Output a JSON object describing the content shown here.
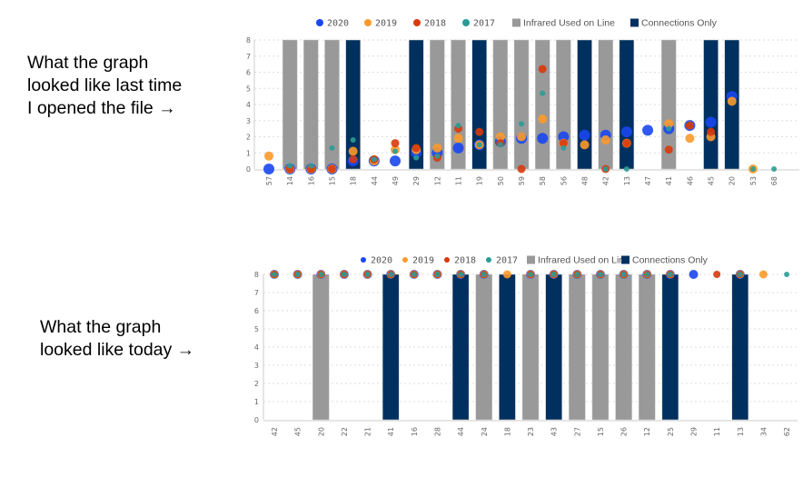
{
  "captions": {
    "before": "What the graph\nlooked like last time\nI opened the file →",
    "after": "What the graph\nlooked like today →"
  },
  "colors": {
    "2020": "#1a47f0",
    "2019": "#fb9a2b",
    "2018": "#d83a0c",
    "2017": "#2a9c96",
    "Infrared Used on Line": "#999999",
    "Connections Only": "#00305f"
  },
  "chart_data": [
    {
      "type": "bar+scatter",
      "legend": [
        "2020",
        "2019",
        "2018",
        "2017",
        "Infrared Used on Line",
        "Connections Only"
      ],
      "legend_position": "top",
      "ylim": [
        0,
        8
      ],
      "yticks": [
        0,
        1,
        2,
        3,
        4,
        5,
        6,
        7,
        8
      ],
      "grid": true,
      "categories": [
        "57",
        "14",
        "16",
        "15",
        "18",
        "44",
        "49",
        "29",
        "12",
        "11",
        "19",
        "50",
        "59",
        "58",
        "56",
        "48",
        "42",
        "13",
        "47",
        "41",
        "46",
        "45",
        "20",
        "53",
        "68"
      ],
      "bars": [
        "",
        "Infrared Used on Line",
        "Infrared Used on Line",
        "Infrared Used on Line",
        "Connections Only",
        "",
        "",
        "Connections Only",
        "Infrared Used on Line",
        "Infrared Used on Line",
        "Connections Only",
        "Infrared Used on Line",
        "Infrared Used on Line",
        "Infrared Used on Line",
        "Infrared Used on Line",
        "Connections Only",
        "Infrared Used on Line",
        "Connections Only",
        "",
        "Infrared Used on Line",
        "",
        "Connections Only",
        "Connections Only",
        "",
        ""
      ],
      "series": [
        {
          "name": "2020",
          "values": [
            0,
            0,
            0,
            0,
            0.5,
            0.5,
            0.5,
            1.0,
            1.0,
            1.3,
            1.5,
            1.7,
            1.9,
            1.9,
            2.0,
            2.1,
            2.1,
            2.3,
            2.4,
            2.5,
            2.7,
            2.9,
            4.5,
            null,
            null
          ]
        },
        {
          "name": "2019",
          "values": [
            0.8,
            0,
            0,
            0,
            1.1,
            0.5,
            1.2,
            1.2,
            1.3,
            1.9,
            1.5,
            2.0,
            2.0,
            3.1,
            1.6,
            1.5,
            1.8,
            1.6,
            null,
            2.8,
            1.9,
            2.0,
            4.2,
            0,
            null
          ]
        },
        {
          "name": "2018",
          "values": [
            null,
            0,
            0,
            0,
            0.6,
            0.6,
            1.6,
            1.3,
            0.7,
            2.5,
            2.3,
            1.6,
            0,
            6.2,
            1.6,
            null,
            0,
            1.6,
            null,
            1.2,
            2.7,
            2.3,
            null,
            null,
            null
          ]
        },
        {
          "name": "2017",
          "values": [
            null,
            0.2,
            0.2,
            1.3,
            1.8,
            0.6,
            1.1,
            0.7,
            0.8,
            2.7,
            1.5,
            1.5,
            2.8,
            4.7,
            1.3,
            null,
            0,
            0,
            null,
            2.5,
            null,
            null,
            null,
            0,
            0
          ]
        }
      ]
    },
    {
      "type": "bar+scatter",
      "legend": [
        "2020",
        "2019",
        "2018",
        "2017",
        "Infrared Used on Line",
        "Connections Only"
      ],
      "legend_position": "top",
      "ylim": [
        0,
        8
      ],
      "yticks": [
        0,
        1,
        2,
        3,
        4,
        5,
        6,
        7,
        8
      ],
      "grid": true,
      "categories": [
        "42",
        "45",
        "20",
        "22",
        "21",
        "41",
        "16",
        "28",
        "44",
        "24",
        "18",
        "23",
        "43",
        "27",
        "15",
        "26",
        "12",
        "25",
        "29",
        "11",
        "13",
        "34",
        "62"
      ],
      "bars": [
        "",
        "",
        "Infrared Used on Line",
        "",
        "",
        "Connections Only",
        "",
        "",
        "Connections Only",
        "Infrared Used on Line",
        "Connections Only",
        "Infrared Used on Line",
        "Connections Only",
        "Infrared Used on Line",
        "Infrared Used on Line",
        "Infrared Used on Line",
        "Infrared Used on Line",
        "Connections Only",
        "",
        "",
        "Connections Only",
        "",
        ""
      ],
      "series": [
        {
          "name": "2020",
          "values": [
            8,
            8,
            8,
            8,
            8,
            8,
            8,
            8,
            8,
            8,
            null,
            8,
            8,
            8,
            8,
            8,
            8,
            8,
            8,
            null,
            8,
            null,
            null
          ]
        },
        {
          "name": "2019",
          "values": [
            8,
            8,
            8,
            8,
            8,
            8,
            8,
            8,
            8,
            8,
            8,
            8,
            8,
            8,
            8,
            8,
            8,
            8,
            null,
            null,
            8,
            8,
            null
          ]
        },
        {
          "name": "2018",
          "values": [
            8,
            8,
            8,
            8,
            8,
            8,
            8,
            8,
            8,
            8,
            null,
            8,
            8,
            8,
            8,
            8,
            8,
            8,
            null,
            8,
            8,
            null,
            null
          ]
        },
        {
          "name": "2017",
          "values": [
            8,
            8,
            8,
            8,
            8,
            8,
            8,
            8,
            8,
            8,
            null,
            8,
            8,
            8,
            8,
            8,
            8,
            8,
            null,
            null,
            8,
            null,
            8
          ]
        }
      ]
    }
  ]
}
